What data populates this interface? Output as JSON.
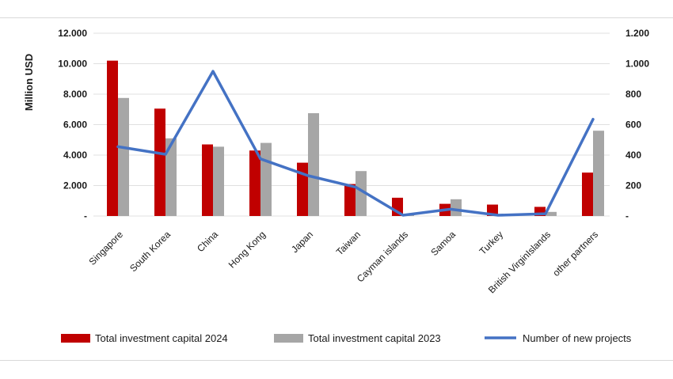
{
  "chart_data": {
    "type": "bar",
    "ylabel": "Million USD",
    "y2label": "",
    "ylim": [
      0,
      12000
    ],
    "y2lim": [
      0,
      1200
    ],
    "y_ticks": [
      "-",
      "2.000",
      "4.000",
      "6.000",
      "8.000",
      "10.000",
      "12.000"
    ],
    "y2_ticks": [
      "-",
      "200",
      "400",
      "600",
      "800",
      "1.000",
      "1.200"
    ],
    "categories": [
      "Singapore",
      "South Korea",
      "China",
      "Hong Kong",
      "Japan",
      "Taiwan",
      "Cayman islands",
      "Samoa",
      "Turkey",
      "British VirginIslands",
      "other partners"
    ],
    "series": [
      {
        "name": "Total investment capital 2024",
        "kind": "bar",
        "axis": "left",
        "color": "#c00000",
        "values": [
          10200,
          7050,
          4700,
          4300,
          3500,
          2100,
          1200,
          800,
          750,
          600,
          2850
        ]
      },
      {
        "name": "Total investment capital 2023",
        "kind": "bar",
        "axis": "left",
        "color": "#a6a6a6",
        "values": [
          7750,
          5100,
          4550,
          4800,
          6750,
          2950,
          60,
          1100,
          0,
          270,
          5600
        ]
      },
      {
        "name": "Number of new projects",
        "kind": "line",
        "axis": "right",
        "color": "#4472c4",
        "values": [
          455,
          405,
          950,
          375,
          265,
          190,
          5,
          45,
          5,
          15,
          635
        ]
      }
    ],
    "grid": true,
    "legend_position": "bottom"
  }
}
